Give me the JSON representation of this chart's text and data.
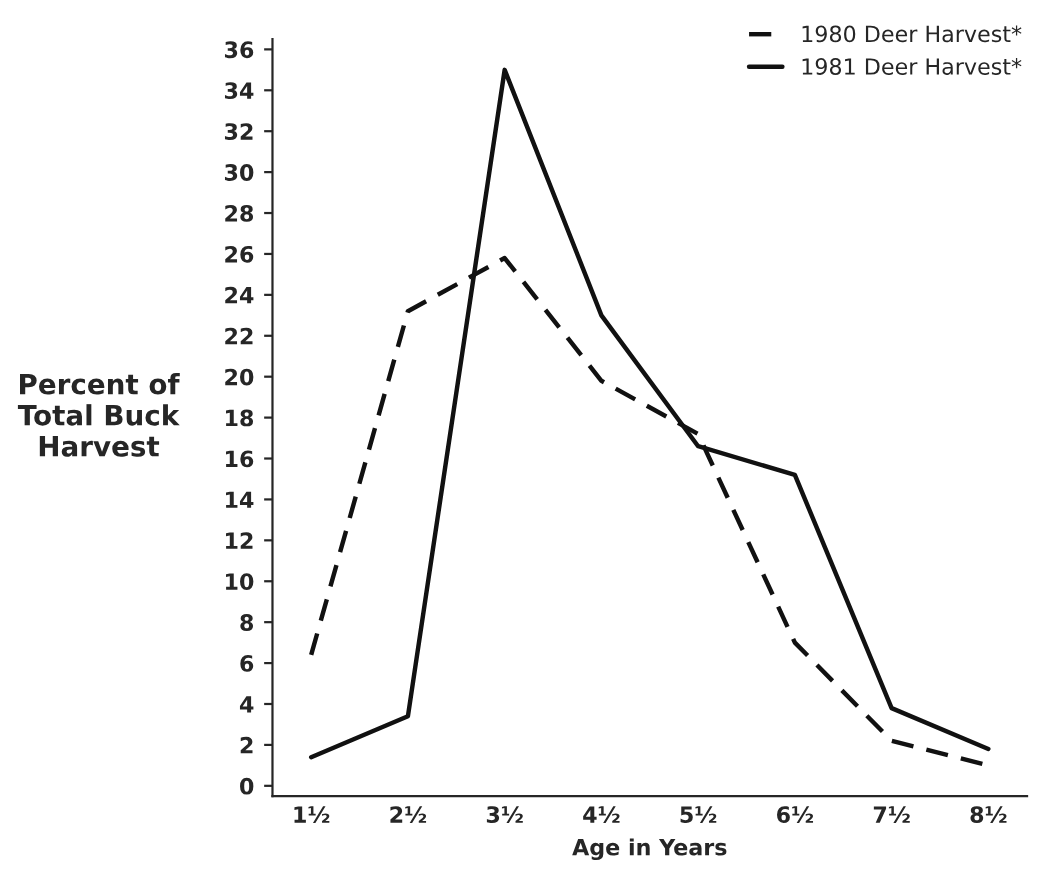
{
  "chart_data": {
    "type": "line",
    "xlabel": "Age in Years",
    "ylabel": "Percent of\nTotal Buck\nHarvest",
    "categories": [
      "1½",
      "2½",
      "3½",
      "4½",
      "5½",
      "6½",
      "7½",
      "8½"
    ],
    "series": [
      {
        "name": "1980 Deer Harvest*",
        "color": "#111111",
        "line_style": "dashed",
        "values": [
          6.4,
          23.2,
          25.8,
          19.8,
          17.2,
          7.0,
          2.2,
          1.0
        ]
      },
      {
        "name": "1981 Deer Harvest*",
        "color": "#111111",
        "line_style": "solid",
        "values": [
          1.4,
          3.4,
          35.0,
          23.0,
          16.6,
          15.2,
          3.8,
          1.8
        ]
      }
    ],
    "ylim": [
      -0.5,
      36.5
    ],
    "yticks": [
      0,
      2,
      4,
      6,
      8,
      10,
      12,
      14,
      16,
      18,
      20,
      22,
      24,
      26,
      28,
      30,
      32,
      34,
      36
    ],
    "grid": false,
    "legend": "top right",
    "marker": "none"
  }
}
